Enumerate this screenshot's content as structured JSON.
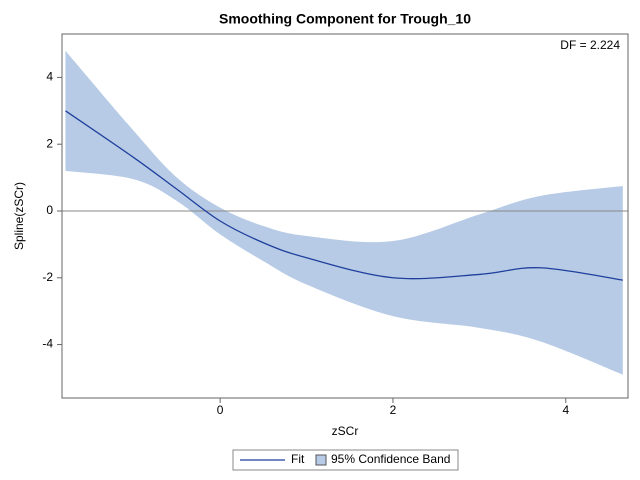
{
  "chart_data": {
    "type": "spline-band",
    "title": "Smoothing Component for Trough_10",
    "annotation": "DF = 2.224",
    "x_label": "zSCr",
    "y_label": "Spline(zSCr)",
    "x": [
      -1.79,
      -1,
      -0.5,
      0,
      0.5,
      1,
      2,
      3,
      3.7,
      4.66
    ],
    "series": [
      {
        "name": "Fit",
        "color": "#1f3f9c",
        "values": [
          3.0,
          1.6,
          0.65,
          -0.3,
          -0.95,
          -1.4,
          -2.0,
          -1.9,
          -1.7,
          -2.07
        ]
      }
    ],
    "band": {
      "name": "95% Confidence Band",
      "color": "#b7cbe6",
      "upper": [
        4.8,
        2.4,
        1.0,
        0.1,
        -0.45,
        -0.75,
        -0.9,
        -0.1,
        0.45,
        0.75
      ],
      "lower": [
        1.2,
        0.95,
        0.3,
        -0.7,
        -1.5,
        -2.2,
        -3.15,
        -3.5,
        -3.9,
        -4.9
      ]
    },
    "reference_line": 0,
    "xlim": [
      -1.83,
      4.72
    ],
    "xticks": [
      0,
      2,
      4
    ],
    "ylim": [
      -5.6,
      5.3
    ],
    "yticks": [
      -4,
      -2,
      0,
      2,
      4
    ]
  }
}
